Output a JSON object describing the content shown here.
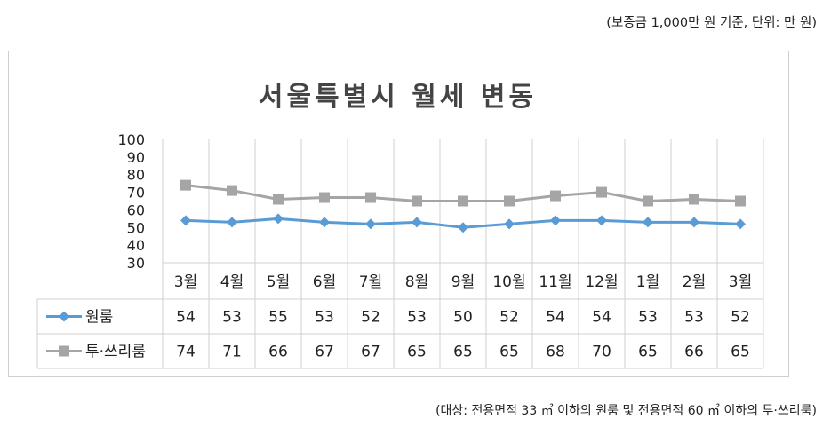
{
  "notes": {
    "top": "(보증금 1,000만 원 기준, 단위: 만 원)",
    "bottom": "(대상: 전용면적 33 ㎡ 이하의 원룸 및 전용면적 60 ㎡ 이하의 투·쓰리룸)"
  },
  "chart_data": {
    "type": "line",
    "title": "서울특별시 월세 변동",
    "categories": [
      "3월",
      "4월",
      "5월",
      "6월",
      "7월",
      "8월",
      "9월",
      "10월",
      "11월",
      "12월",
      "1월",
      "2월",
      "3월"
    ],
    "ylim": [
      30,
      100
    ],
    "yticks": [
      "100",
      "90",
      "80",
      "70",
      "60",
      "50",
      "40",
      "30"
    ],
    "grid": "vertical",
    "legend": "data-table",
    "series": [
      {
        "name": "원룸",
        "color": "#5b9bd5",
        "marker": "diamond",
        "values": [
          54,
          53,
          55,
          53,
          52,
          53,
          50,
          52,
          54,
          54,
          53,
          53,
          52
        ]
      },
      {
        "name": "투·쓰리룸",
        "color": "#a5a5a5",
        "marker": "square",
        "values": [
          74,
          71,
          66,
          67,
          67,
          65,
          65,
          65,
          68,
          70,
          65,
          66,
          65
        ]
      }
    ]
  }
}
